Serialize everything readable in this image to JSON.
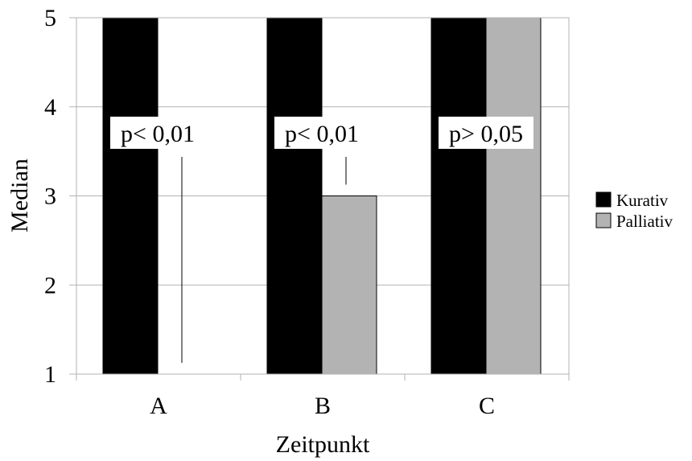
{
  "chart_data": {
    "type": "bar",
    "categories": [
      "A",
      "B",
      "C"
    ],
    "series": [
      {
        "name": "Kurativ",
        "values": [
          5,
          5,
          5
        ],
        "color": "#000000"
      },
      {
        "name": "Palliativ",
        "values": [
          1,
          3,
          5
        ],
        "color": "#b3b3b3"
      }
    ],
    "xlabel": "Zeitpunkt",
    "ylabel": "Median",
    "ylim": [
      1,
      5
    ],
    "yticks": [
      1,
      2,
      3,
      4,
      5
    ],
    "grid": true,
    "legend": "right",
    "annotations": [
      {
        "category": "A",
        "text": "p< 0,01"
      },
      {
        "category": "B",
        "text": "p< 0,01"
      },
      {
        "category": "C",
        "text": "p> 0,05"
      }
    ]
  }
}
